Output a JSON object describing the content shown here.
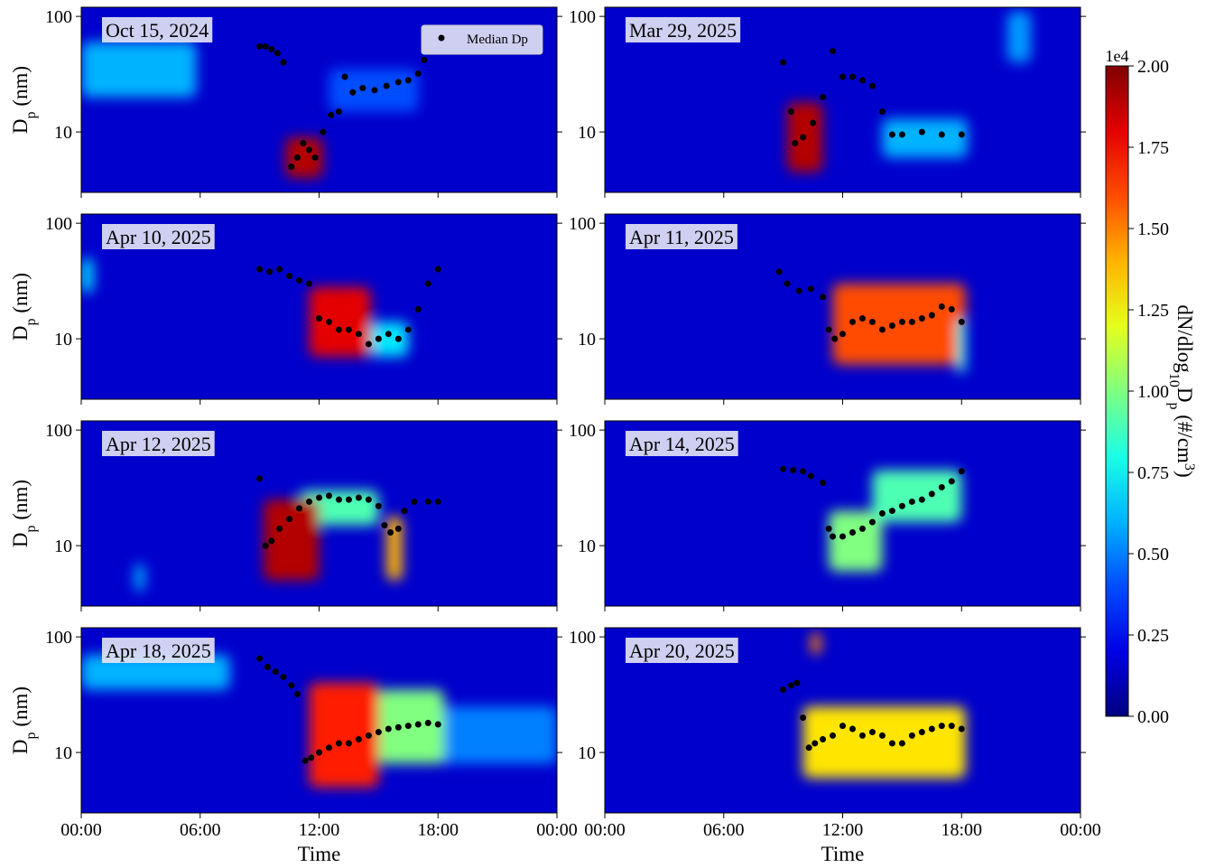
{
  "chart_data": [
    {
      "type": "heatmap",
      "title": "Oct 15, 2024",
      "title_corner": "upper left",
      "log_y": true,
      "xlim": [
        0,
        24
      ],
      "xticks": [
        0,
        6,
        12,
        18,
        24
      ],
      "ylim": [
        3,
        120
      ],
      "yticks": [
        10,
        100
      ],
      "y_label": [
        {
          "text": "D"
        },
        {
          "text": "p",
          "sub": true
        },
        {
          "text": " (nm)"
        }
      ],
      "background_value": 0.15,
      "regions": [
        {
          "x": 0,
          "x_end": 5.8,
          "y": 20,
          "y_end": 60,
          "value": 0.6
        },
        {
          "x": 10.3,
          "x_end": 12.2,
          "y": 4,
          "y_end": 9,
          "value": 1.9
        },
        {
          "x": 12.5,
          "x_end": 17,
          "y": 15,
          "y_end": 35,
          "value": 0.4
        }
      ],
      "legend_corner": "upper right",
      "series": [
        {
          "name": "Median Dp",
          "color": "#000000",
          "x": [
            9.0,
            9.3,
            9.6,
            9.9,
            10.2,
            10.6,
            10.9,
            11.2,
            11.5,
            11.8,
            12.2,
            12.6,
            13.0,
            13.3,
            13.7,
            14.2,
            14.8,
            15.4,
            16.0,
            16.5,
            17.0,
            17.3
          ],
          "values": [
            55,
            55,
            52,
            48,
            40,
            5,
            6,
            8,
            7,
            6,
            10,
            14,
            15,
            30,
            22,
            24,
            23,
            25,
            27,
            28,
            32,
            42
          ]
        }
      ]
    },
    {
      "type": "heatmap",
      "title": "Mar 29, 2025",
      "title_corner": "upper left",
      "log_y": true,
      "xlim": [
        0,
        24
      ],
      "xticks": [
        0,
        6,
        12,
        18,
        24
      ],
      "ylim": [
        3,
        120
      ],
      "yticks": [
        10,
        100
      ],
      "background_value": 0.15,
      "regions": [
        {
          "x": 9.2,
          "x_end": 11,
          "y": 4.5,
          "y_end": 18,
          "value": 1.9
        },
        {
          "x": 14,
          "x_end": 18.3,
          "y": 6,
          "y_end": 13,
          "value": 0.6
        },
        {
          "x": 20.3,
          "x_end": 21.5,
          "y": 40,
          "y_end": 110,
          "value": 0.55
        }
      ],
      "series": [
        {
          "color": "#000000",
          "x": [
            9.0,
            9.4,
            9.6,
            10.0,
            10.5,
            11.0,
            11.5,
            12.0,
            12.5,
            13.0,
            13.5,
            14.0,
            14.5,
            15.0,
            16.0,
            17.0,
            18.0
          ],
          "values": [
            40,
            15,
            8,
            9,
            12,
            20,
            50,
            30,
            30,
            28,
            25,
            15,
            9.5,
            9.5,
            10,
            9.5,
            9.5
          ]
        }
      ]
    },
    {
      "type": "heatmap",
      "title": "Apr 10, 2025",
      "title_corner": "upper left",
      "log_y": true,
      "xlim": [
        0,
        24
      ],
      "xticks": [
        0,
        6,
        12,
        18,
        24
      ],
      "ylim": [
        3,
        120
      ],
      "yticks": [
        10,
        100
      ],
      "y_label": [
        {
          "text": "D"
        },
        {
          "text": "p",
          "sub": true
        },
        {
          "text": " (nm)"
        }
      ],
      "background_value": 0.15,
      "regions": [
        {
          "x": 11.5,
          "x_end": 14.6,
          "y": 7,
          "y_end": 28,
          "value": 1.8
        },
        {
          "x": 14.6,
          "x_end": 16.5,
          "y": 7,
          "y_end": 14,
          "value": 0.7
        },
        {
          "x": 0,
          "x_end": 0.6,
          "y": 25,
          "y_end": 50,
          "value": 0.7
        }
      ],
      "series": [
        {
          "color": "#000000",
          "x": [
            9.0,
            9.5,
            10.0,
            10.5,
            11.0,
            11.5,
            12.0,
            12.5,
            13.0,
            13.5,
            14.0,
            14.5,
            15.0,
            15.5,
            16.0,
            16.5,
            17.0,
            17.5,
            18.0
          ],
          "values": [
            40,
            38,
            40,
            35,
            32,
            30,
            15,
            14,
            12,
            12,
            11,
            9,
            10,
            11,
            10,
            12,
            18,
            30,
            40
          ]
        }
      ]
    },
    {
      "type": "heatmap",
      "title": "Apr 11, 2025",
      "title_corner": "upper left",
      "log_y": true,
      "xlim": [
        0,
        24
      ],
      "xticks": [
        0,
        6,
        12,
        18,
        24
      ],
      "ylim": [
        3,
        120
      ],
      "yticks": [
        10,
        100
      ],
      "background_value": 0.15,
      "regions": [
        {
          "x": 11.5,
          "x_end": 18.2,
          "y": 6,
          "y_end": 30,
          "value": 1.6
        },
        {
          "x": 17.8,
          "x_end": 18.2,
          "y": 5,
          "y_end": 15,
          "value": 0.8
        }
      ],
      "series": [
        {
          "color": "#000000",
          "x": [
            8.8,
            9.2,
            9.8,
            10.4,
            11.0,
            11.3,
            11.6,
            12.0,
            12.5,
            13.0,
            13.5,
            14.0,
            14.5,
            15.0,
            15.5,
            16.0,
            16.5,
            17.0,
            17.5,
            18.0
          ],
          "values": [
            38,
            30,
            26,
            27,
            23,
            12,
            10,
            11,
            14,
            15,
            14,
            12,
            13,
            14,
            14,
            15,
            16,
            19,
            18,
            14
          ]
        }
      ]
    },
    {
      "type": "heatmap",
      "title": "Apr 12, 2025",
      "title_corner": "upper left",
      "log_y": true,
      "xlim": [
        0,
        24
      ],
      "xticks": [
        0,
        6,
        12,
        18,
        24
      ],
      "ylim": [
        3,
        120
      ],
      "yticks": [
        10,
        100
      ],
      "y_label": [
        {
          "text": "D"
        },
        {
          "text": "p",
          "sub": true
        },
        {
          "text": " (nm)"
        }
      ],
      "background_value": 0.15,
      "regions": [
        {
          "x": 11,
          "x_end": 15,
          "y": 15,
          "y_end": 30,
          "value": 0.9
        },
        {
          "x": 9.2,
          "x_end": 12,
          "y": 5,
          "y_end": 25,
          "value": 1.9
        },
        {
          "x": 15.4,
          "x_end": 16.2,
          "y": 5,
          "y_end": 18,
          "value": 1.4
        },
        {
          "x": 2.7,
          "x_end": 3.2,
          "y": 4,
          "y_end": 7,
          "value": 0.6
        }
      ],
      "series": [
        {
          "color": "#000000",
          "x": [
            9.0,
            9.3,
            9.6,
            10.0,
            10.5,
            11.0,
            11.5,
            12.0,
            12.5,
            13.0,
            13.5,
            14.0,
            14.5,
            15.0,
            15.3,
            15.6,
            16.0,
            16.3,
            16.8,
            17.5,
            18.0
          ],
          "values": [
            38,
            10,
            11,
            14,
            17,
            21,
            24,
            26,
            27,
            25,
            25,
            26,
            25,
            22,
            15,
            13,
            14,
            20,
            24,
            24,
            24
          ]
        }
      ]
    },
    {
      "type": "heatmap",
      "title": "Apr 14, 2025",
      "title_corner": "upper left",
      "log_y": true,
      "xlim": [
        0,
        24
      ],
      "xticks": [
        0,
        6,
        12,
        18,
        24
      ],
      "ylim": [
        3,
        120
      ],
      "yticks": [
        10,
        100
      ],
      "background_value": 0.15,
      "regions": [
        {
          "x": 11.3,
          "x_end": 14,
          "y": 6,
          "y_end": 20,
          "value": 1.0
        },
        {
          "x": 13.5,
          "x_end": 18,
          "y": 16,
          "y_end": 45,
          "value": 0.9
        }
      ],
      "series": [
        {
          "color": "#000000",
          "x": [
            9.0,
            9.5,
            10.0,
            10.4,
            11.0,
            11.3,
            11.5,
            12.0,
            12.5,
            13.0,
            13.5,
            14.0,
            14.5,
            15.0,
            15.5,
            16.0,
            16.5,
            17.0,
            17.5,
            18.0
          ],
          "values": [
            46,
            45,
            44,
            40,
            35,
            14,
            12,
            12,
            13,
            14,
            16,
            19,
            20,
            22,
            24,
            25,
            28,
            32,
            36,
            44
          ]
        }
      ]
    },
    {
      "type": "heatmap",
      "title": "Apr 18, 2025",
      "title_corner": "upper left",
      "log_y": true,
      "xlim": [
        0,
        24
      ],
      "xticks": [
        {
          "value": 0,
          "label": "00:00"
        },
        {
          "value": 6,
          "label": "06:00"
        },
        {
          "value": 12,
          "label": "12:00"
        },
        {
          "value": 18,
          "label": "18:00"
        },
        {
          "value": 24,
          "label": "00:00"
        }
      ],
      "ylim": [
        3,
        120
      ],
      "yticks": [
        10,
        100
      ],
      "x_label": "Time",
      "y_label": [
        {
          "text": "D"
        },
        {
          "text": "p",
          "sub": true
        },
        {
          "text": " (nm)"
        }
      ],
      "background_value": 0.15,
      "regions": [
        {
          "x": 0,
          "x_end": 7.5,
          "y": 35,
          "y_end": 70,
          "value": 0.6
        },
        {
          "x": 18,
          "x_end": 24,
          "y": 8,
          "y_end": 25,
          "value": 0.5
        },
        {
          "x": 15,
          "x_end": 18.3,
          "y": 8,
          "y_end": 35,
          "value": 1.0
        },
        {
          "x": 11.5,
          "x_end": 15,
          "y": 5,
          "y_end": 40,
          "value": 1.7
        }
      ],
      "series": [
        {
          "color": "#000000",
          "x": [
            9.0,
            9.4,
            9.8,
            10.2,
            10.6,
            10.9,
            11.3,
            11.6,
            12.0,
            12.5,
            13.0,
            13.5,
            14.0,
            14.5,
            15.0,
            15.5,
            16.0,
            16.5,
            17.0,
            17.5,
            18.0
          ],
          "values": [
            65,
            55,
            50,
            45,
            38,
            32,
            8.5,
            9,
            10,
            11,
            12,
            12,
            13,
            14,
            15,
            16,
            16.5,
            17,
            17.5,
            18,
            17.5
          ]
        }
      ]
    },
    {
      "type": "heatmap",
      "title": "Apr 20, 2025",
      "title_corner": "upper left",
      "log_y": true,
      "xlim": [
        0,
        24
      ],
      "xticks": [
        {
          "value": 0,
          "label": "00:00"
        },
        {
          "value": 6,
          "label": "06:00"
        },
        {
          "value": 12,
          "label": "12:00"
        },
        {
          "value": 18,
          "label": "18:00"
        },
        {
          "value": 24,
          "label": "00:00"
        }
      ],
      "ylim": [
        3,
        120
      ],
      "yticks": [
        10,
        100
      ],
      "x_label": "Time",
      "background_value": 0.15,
      "regions": [
        {
          "x": 10,
          "x_end": 18.2,
          "y": 6,
          "y_end": 25,
          "value": 1.3
        },
        {
          "x": 10.4,
          "x_end": 10.9,
          "y": 70,
          "y_end": 110,
          "value": 1.5
        }
      ],
      "series": [
        {
          "color": "#000000",
          "x": [
            9.0,
            9.4,
            9.7,
            10.0,
            10.3,
            10.6,
            11.0,
            11.5,
            12.0,
            12.5,
            13.0,
            13.5,
            14.0,
            14.5,
            15.0,
            15.5,
            16.0,
            16.5,
            17.0,
            17.5,
            18.0
          ],
          "values": [
            35,
            38,
            40,
            20,
            11,
            12,
            13,
            14,
            17,
            16,
            14,
            15,
            14,
            12,
            12,
            14,
            15,
            16,
            17,
            17,
            16
          ]
        }
      ]
    }
  ],
  "colorbar": {
    "lim": [
      0,
      2
    ],
    "multiplier": "1e4",
    "ticks": [
      {
        "value": 0,
        "label": "0.00"
      },
      {
        "value": 0.25,
        "label": "0.25"
      },
      {
        "value": 0.5,
        "label": "0.50"
      },
      {
        "value": 0.75,
        "label": "0.75"
      },
      {
        "value": 1,
        "label": "1.00"
      },
      {
        "value": 1.25,
        "label": "1.25"
      },
      {
        "value": 1.5,
        "label": "1.50"
      },
      {
        "value": 1.75,
        "label": "1.75"
      },
      {
        "value": 2,
        "label": "2.00"
      }
    ],
    "label": [
      {
        "text": "dN/dlog"
      },
      {
        "text": "10",
        "sub": true
      },
      {
        "text": "D"
      },
      {
        "text": "p",
        "sub": true
      },
      {
        "text": " (#/cm"
      },
      {
        "text": "3",
        "sup": true
      },
      {
        "text": ")"
      }
    ]
  }
}
